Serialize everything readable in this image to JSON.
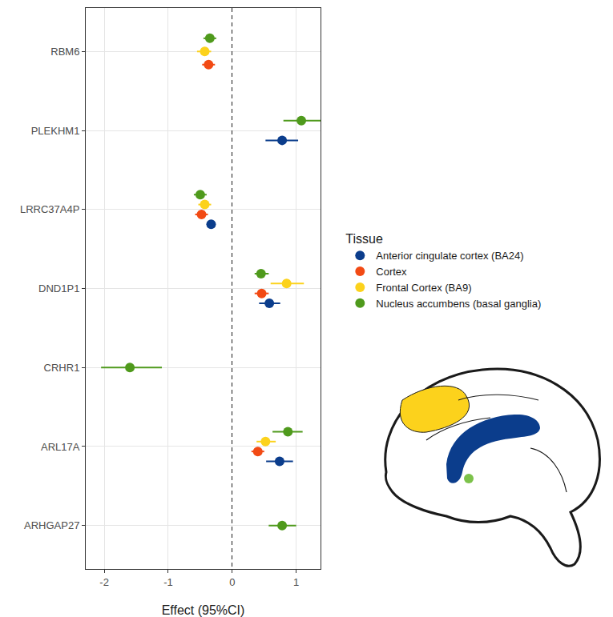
{
  "chart_data": {
    "type": "forest",
    "x_label": "Effect (95%CI)",
    "legend_title": "Tissue",
    "legend": "right",
    "grid": true,
    "orientation": "horizontal",
    "categories": [
      "RBM6",
      "PLEKHM1",
      "LRRC37A4P",
      "DND1P1",
      "CRHR1",
      "ARL17A",
      "ARHGAP27"
    ],
    "xlim": [
      -2.29,
      1.38
    ],
    "xticks": [
      -2,
      -1,
      0,
      1
    ],
    "series": [
      {
        "name": "Anterior cingulate cortex (BA24)",
        "color": "#0b3d8c",
        "values": [
          null,
          0.78,
          -0.33,
          0.58,
          null,
          0.74,
          null
        ],
        "ci_low": [
          null,
          0.52,
          -0.4,
          0.42,
          null,
          0.53,
          null
        ],
        "ci_high": [
          null,
          1.03,
          -0.27,
          0.75,
          null,
          0.95,
          null
        ]
      },
      {
        "name": "Cortex",
        "color": "#f24a14",
        "values": [
          -0.37,
          null,
          -0.48,
          0.46,
          null,
          0.4,
          null
        ],
        "ci_low": [
          -0.47,
          null,
          -0.58,
          0.35,
          null,
          0.3,
          null
        ],
        "ci_high": [
          -0.27,
          null,
          -0.38,
          0.57,
          null,
          0.5,
          null
        ]
      },
      {
        "name": "Frontal Cortex (BA9)",
        "color": "#fcd21c",
        "values": [
          -0.43,
          null,
          -0.43,
          0.85,
          null,
          0.52,
          null
        ],
        "ci_low": [
          -0.55,
          null,
          -0.53,
          0.6,
          null,
          0.38,
          null
        ],
        "ci_high": [
          -0.33,
          null,
          -0.33,
          1.12,
          null,
          0.68,
          null
        ]
      },
      {
        "name": "Nucleus accumbens (basal ganglia)",
        "color": "#4f9a1c",
        "values": [
          -0.35,
          1.08,
          -0.5,
          0.45,
          -1.6,
          0.87,
          0.78
        ],
        "ci_low": [
          -0.45,
          0.8,
          -0.6,
          0.35,
          -2.05,
          0.63,
          0.57
        ],
        "ci_high": [
          -0.25,
          1.38,
          -0.4,
          0.57,
          -1.1,
          1.1,
          1.0
        ]
      }
    ]
  }
}
